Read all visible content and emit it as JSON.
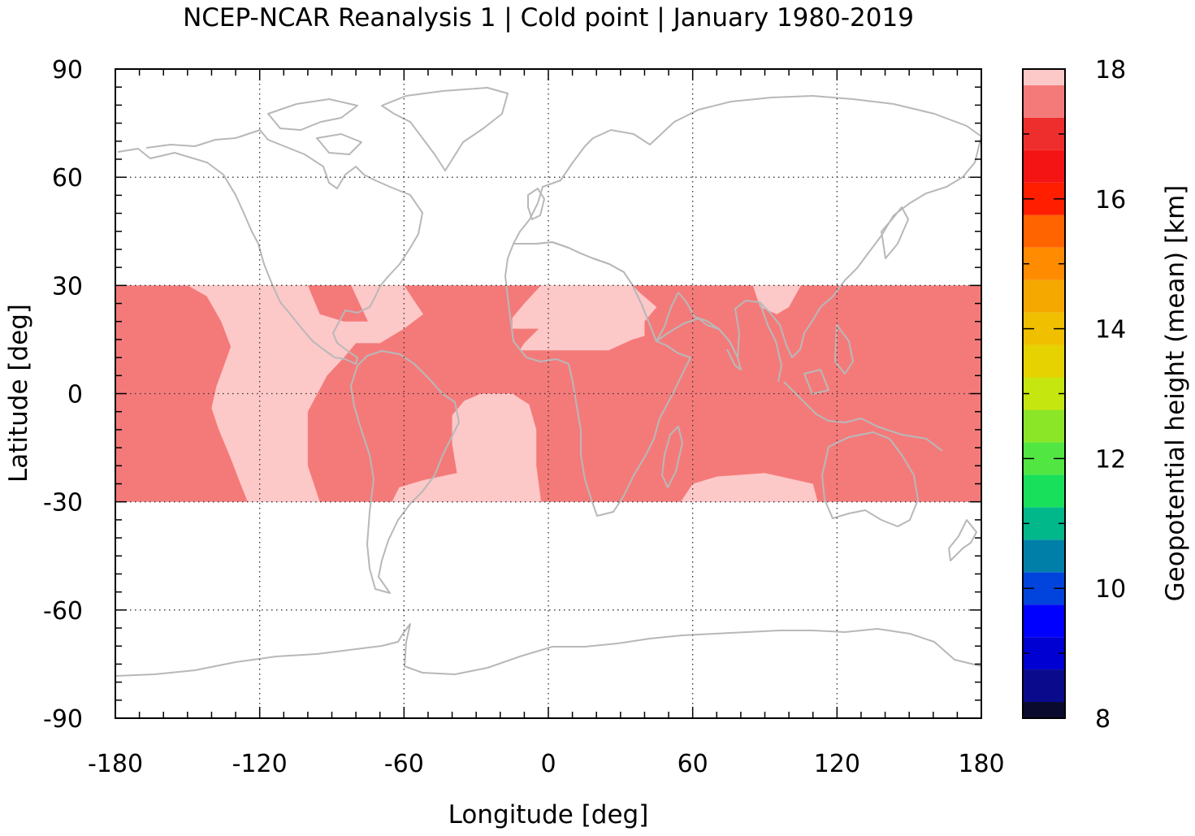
{
  "chart_data": {
    "type": "heatmap",
    "title": "NCEP-NCAR Reanalysis 1 | Cold point | January 1980-2019",
    "xlabel": "Longitude [deg]",
    "ylabel": "Latitude [deg]",
    "xlim": [
      -180,
      180
    ],
    "ylim": [
      -90,
      90
    ],
    "x_ticks": [
      "-180",
      "-120",
      "-60",
      "0",
      "60",
      "120",
      "180"
    ],
    "y_ticks": [
      "90",
      "60",
      "30",
      "0",
      "-30",
      "-60",
      "-90"
    ],
    "grid": true,
    "data_extent": {
      "lat_min": -30,
      "lat_max": 30,
      "lon_min": -180,
      "lon_max": 180
    },
    "background_value": 17.5,
    "regions": [
      {
        "value": 18.0,
        "polygon": [
          [
            -160,
            30
          ],
          [
            -150,
            30
          ],
          [
            -142,
            27
          ],
          [
            -136,
            20
          ],
          [
            -132,
            13
          ],
          [
            -138,
            2
          ],
          [
            -140,
            -4
          ],
          [
            -137,
            -10
          ],
          [
            -132,
            -18
          ],
          [
            -128,
            -25
          ],
          [
            -125,
            -30
          ],
          [
            -95,
            -30
          ],
          [
            -100,
            -20
          ],
          [
            -100,
            -5
          ],
          [
            -92,
            5
          ],
          [
            -85,
            10
          ],
          [
            -80,
            14
          ],
          [
            -70,
            14
          ],
          [
            -60,
            18
          ],
          [
            -52,
            22
          ],
          [
            -60,
            30
          ]
        ]
      },
      {
        "value": 17.5,
        "polygon": [
          [
            -95,
            22
          ],
          [
            -85,
            20
          ],
          [
            -75,
            20
          ],
          [
            -82,
            30
          ],
          [
            -100,
            30
          ]
        ]
      },
      {
        "value": 18.0,
        "polygon": [
          [
            -18,
            30
          ],
          [
            -3,
            30
          ],
          [
            -10,
            25
          ],
          [
            -15,
            21
          ],
          [
            -15,
            18
          ],
          [
            -4,
            18
          ],
          [
            -10,
            14
          ],
          [
            -12,
            12
          ],
          [
            0,
            12
          ],
          [
            10,
            12
          ],
          [
            25,
            12
          ],
          [
            35,
            15
          ],
          [
            40,
            16
          ],
          [
            40,
            20
          ],
          [
            45,
            24
          ],
          [
            38,
            28
          ],
          [
            35,
            30
          ]
        ]
      },
      {
        "value": 18.0,
        "polygon": [
          [
            -40,
            -6
          ],
          [
            -35,
            -2
          ],
          [
            -28,
            0
          ],
          [
            -15,
            0
          ],
          [
            -8,
            -3
          ],
          [
            -5,
            -10
          ],
          [
            -5,
            -20
          ],
          [
            -3,
            -30
          ],
          [
            -65,
            -30
          ],
          [
            -62,
            -26
          ],
          [
            -52,
            -24
          ],
          [
            -38,
            -22
          ],
          [
            -40,
            -14
          ]
        ]
      },
      {
        "value": 18.0,
        "polygon": [
          [
            60,
            -25
          ],
          [
            70,
            -23
          ],
          [
            90,
            -22
          ],
          [
            110,
            -25
          ],
          [
            112,
            -30
          ],
          [
            55,
            -30
          ]
        ]
      },
      {
        "value": 18.0,
        "polygon": [
          [
            85,
            30
          ],
          [
            95,
            30
          ],
          [
            105,
            30
          ],
          [
            100,
            24
          ],
          [
            95,
            22
          ],
          [
            88,
            24
          ]
        ]
      }
    ],
    "colorbar": {
      "label": "Geopotential height (mean) [km]",
      "min": 8,
      "max": 18,
      "step": 0.5,
      "ticks": [
        "8",
        "10",
        "12",
        "14",
        "16",
        "18"
      ],
      "colors": [
        "#0a0a2e",
        "#0a0a8c",
        "#0000d2",
        "#0000ff",
        "#0044dd",
        "#0080a8",
        "#00b88a",
        "#19e05a",
        "#52e642",
        "#8ce628",
        "#c6e60f",
        "#e6d200",
        "#f0c000",
        "#f5a800",
        "#ff8c00",
        "#ff6400",
        "#ff1e00",
        "#f51414",
        "#ee2d2d",
        "#f47a7a",
        "#fdc8c8"
      ]
    }
  }
}
